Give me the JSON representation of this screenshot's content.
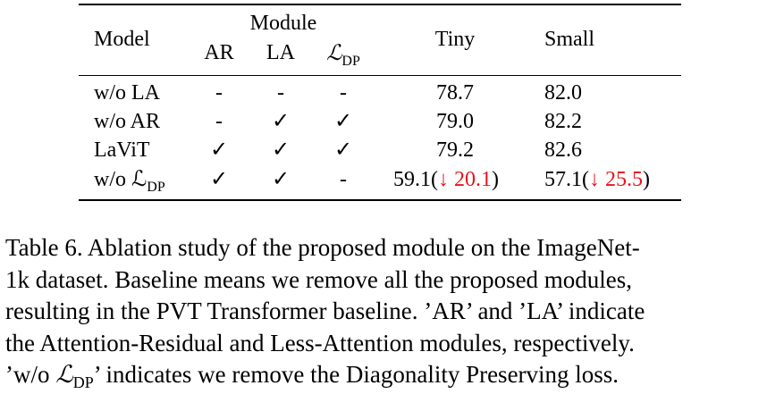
{
  "table": {
    "header": {
      "model": "Model",
      "module_group": "Module",
      "ar": "AR",
      "la": "LA",
      "ldp_symbol": "ℒ",
      "ldp_sub": "DP",
      "tiny": "Tiny",
      "small": "Small"
    },
    "rows": [
      {
        "model": "w/o LA",
        "model_sub": "",
        "ar": "-",
        "la": "-",
        "ldp": "-",
        "tiny": "78.7",
        "tiny_delta": "",
        "small": "82.0",
        "small_delta": ""
      },
      {
        "model": "w/o AR",
        "model_sub": "",
        "ar": "-",
        "la": "✓",
        "ldp": "✓",
        "tiny": "79.0",
        "tiny_delta": "",
        "small": "82.2",
        "small_delta": ""
      },
      {
        "model": "LaViT",
        "model_sub": "",
        "ar": "✓",
        "la": "✓",
        "ldp": "✓",
        "tiny": "79.2",
        "tiny_delta": "",
        "small": "82.6",
        "small_delta": ""
      },
      {
        "model": "w/o ℒ",
        "model_sub": "DP",
        "ar": "✓",
        "la": "✓",
        "ldp": "-",
        "tiny": "59.1(",
        "tiny_delta": "↓ 20.1",
        "tiny_close": ")",
        "small": "57.1(",
        "small_delta": "↓ 25.5",
        "small_close": ")"
      }
    ],
    "delta_color": "#e8131b"
  },
  "caption": {
    "line1": "Table 6. Ablation study of the proposed module on the ImageNet-",
    "line2": "1k dataset. Baseline means we remove all the proposed modules,",
    "line3": "resulting in the PVT Transformer baseline. ’AR’ and ’LA’ indicate",
    "line4": "the Attention-Residual and Less-Attention modules, respectively.",
    "line5_pre": "’w/o ",
    "line5_sym": "ℒ",
    "line5_sub": "DP",
    "line5_post": "’ indicates we remove the Diagonality Preserving loss."
  }
}
